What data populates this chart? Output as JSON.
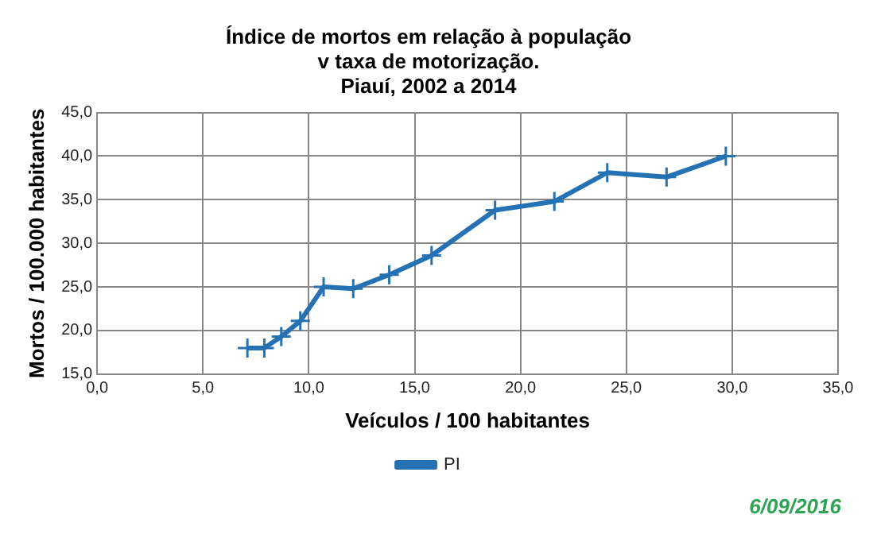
{
  "chart_data": {
    "type": "line",
    "title": "Índice de mortos em relação à população\nv taxa de motorização.\nPiauí, 2002 a 2014",
    "xlabel": "Veículos / 100 habitantes",
    "ylabel": "Mortos / 100.000 habitantes",
    "series": [
      {
        "name": "PI",
        "color": "#2472b4",
        "x": [
          7.1,
          7.9,
          8.7,
          9.6,
          10.7,
          12.1,
          13.8,
          15.8,
          18.8,
          21.6,
          24.1,
          26.9,
          29.7
        ],
        "values": [
          18.0,
          18.0,
          19.3,
          21.1,
          25.0,
          24.8,
          26.4,
          28.6,
          33.8,
          34.8,
          38.1,
          37.6,
          40.0
        ]
      }
    ],
    "xlim": [
      0,
      35
    ],
    "xticks": [
      {
        "value": 0,
        "label": "0,0"
      },
      {
        "value": 5,
        "label": "5,0"
      },
      {
        "value": 10,
        "label": "10,0"
      },
      {
        "value": 15,
        "label": "15,0"
      },
      {
        "value": 20,
        "label": "20,0"
      },
      {
        "value": 25,
        "label": "25,0"
      },
      {
        "value": 30,
        "label": "30,0"
      },
      {
        "value": 35,
        "label": "35,0"
      }
    ],
    "ylim": [
      15,
      45
    ],
    "yticks": [
      {
        "value": 15,
        "label": "15,0"
      },
      {
        "value": 20,
        "label": "20,0"
      },
      {
        "value": 25,
        "label": "25,0"
      },
      {
        "value": 30,
        "label": "30,0"
      },
      {
        "value": 35,
        "label": "35,0"
      },
      {
        "value": 40,
        "label": "40,0"
      },
      {
        "value": 45,
        "label": "45,0"
      }
    ],
    "grid": true,
    "legend": "bottom",
    "marker": "cross",
    "line_style": "solid",
    "annotations": [
      "6/09/2016"
    ]
  }
}
